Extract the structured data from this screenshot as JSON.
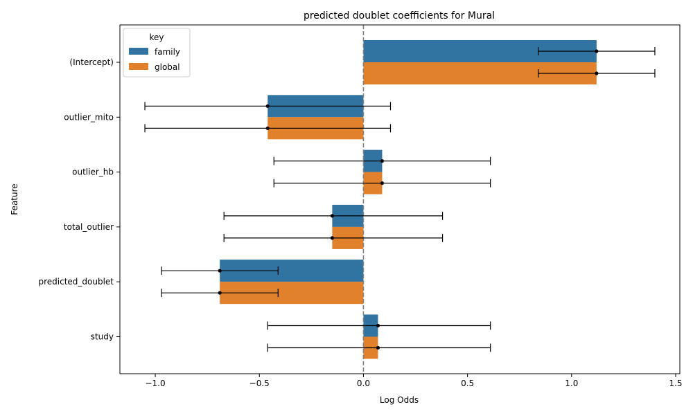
{
  "chart_data": {
    "type": "bar",
    "orientation": "horizontal",
    "title": "predicted doublet coefficients for Mural",
    "xlabel": "Log Odds",
    "ylabel": "Feature",
    "categories": [
      "(Intercept)",
      "outlier_mito",
      "outlier_hb",
      "total_outlier",
      "predicted_doublet",
      "study"
    ],
    "xlim": [
      -1.17,
      1.52
    ],
    "xticks": [
      -1.0,
      -0.5,
      0.0,
      0.5,
      1.0,
      1.5
    ],
    "xtick_labels": [
      "−1.0",
      "−0.5",
      "0.0",
      "0.5",
      "1.0",
      "1.5"
    ],
    "reference_line": {
      "x": 0,
      "style": "dashed",
      "color": "#808080"
    },
    "legend": {
      "title": "key",
      "position": "top-left"
    },
    "series": [
      {
        "name": "family",
        "color": "#3274a1",
        "values": [
          1.12,
          -0.46,
          0.09,
          -0.15,
          -0.69,
          0.07
        ],
        "ci_low": [
          0.84,
          -1.05,
          -0.43,
          -0.67,
          -0.97,
          -0.46
        ],
        "ci_high": [
          1.4,
          0.13,
          0.61,
          0.38,
          -0.41,
          0.61
        ]
      },
      {
        "name": "global",
        "color": "#e1812c",
        "values": [
          1.12,
          -0.46,
          0.09,
          -0.15,
          -0.69,
          0.07
        ],
        "ci_low": [
          0.84,
          -1.05,
          -0.43,
          -0.67,
          -0.97,
          -0.46
        ],
        "ci_high": [
          1.4,
          0.13,
          0.61,
          0.38,
          -0.41,
          0.61
        ]
      }
    ]
  }
}
